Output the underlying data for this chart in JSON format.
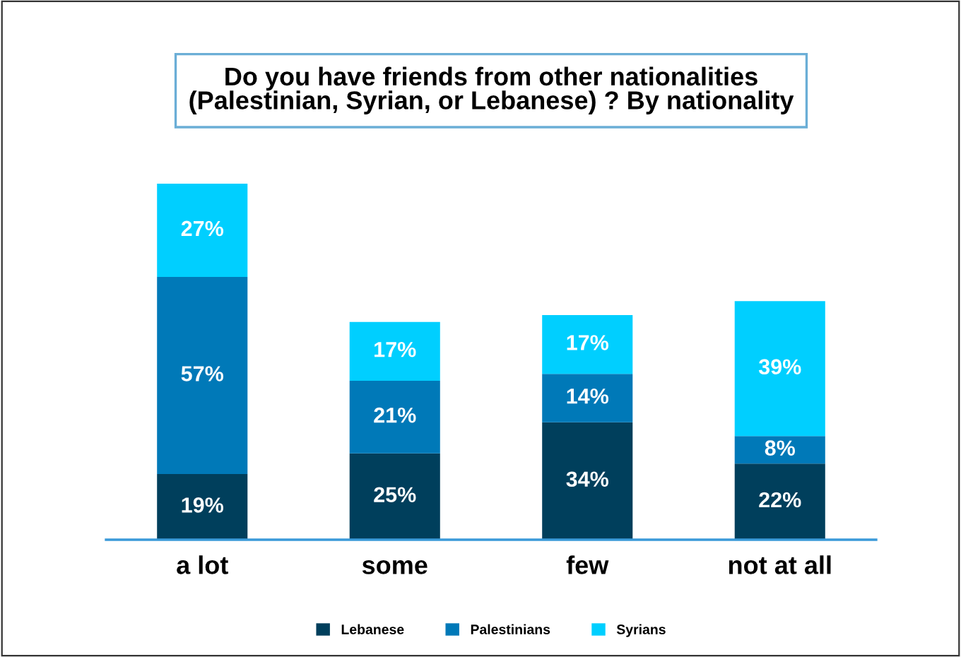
{
  "chart_data": {
    "type": "bar",
    "title": "Do you have friends from other nationalities\n(Palestinian, Syrian, or Lebanese) ? By nationality",
    "categories": [
      "a lot",
      "some",
      "few",
      "not at all"
    ],
    "stacked": true,
    "legend": "bottom",
    "grid": false,
    "series": [
      {
        "name": "Lebanese",
        "color": "#003f5c",
        "values": [
          19,
          25,
          34,
          22
        ],
        "value_labels": [
          "19%",
          "25%",
          "34%",
          "22%"
        ]
      },
      {
        "name": "Palestinians",
        "color": "#0079b8",
        "values": [
          57,
          21,
          14,
          8
        ],
        "value_labels": [
          "57%",
          "21%",
          "14%",
          "8%"
        ]
      },
      {
        "name": "Syrians",
        "color": "#00cfff",
        "values": [
          27,
          17,
          17,
          39
        ],
        "value_labels": [
          "27%",
          "17%",
          "17%",
          "39%"
        ]
      }
    ]
  }
}
